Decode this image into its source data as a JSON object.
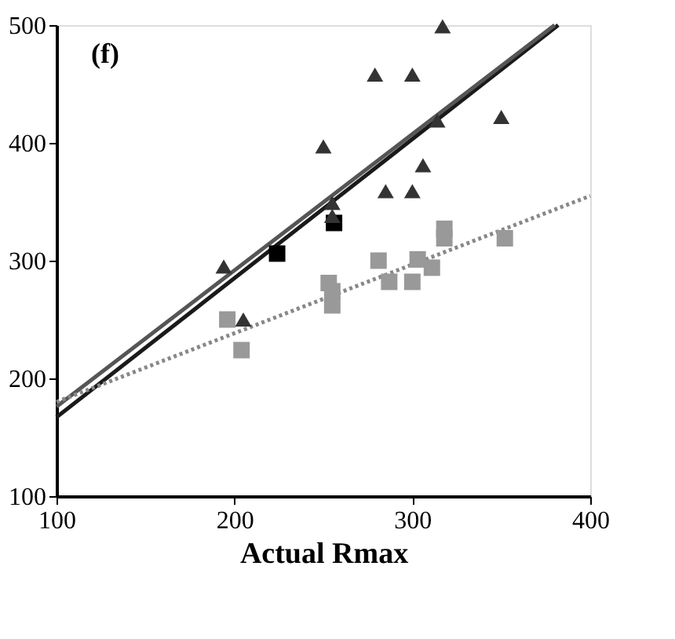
{
  "chart_data": {
    "type": "scatter",
    "xlabel": "Actual Rmax",
    "annotations": [
      "(f)"
    ],
    "xlim": [
      100,
      400
    ],
    "xticks": [
      100,
      200,
      300,
      400
    ],
    "ylim": [
      100,
      500
    ],
    "yticks": [
      100,
      200,
      300,
      400,
      500
    ],
    "grid": false,
    "series": [
      {
        "marker": "triangle",
        "color": "#333333",
        "x": [
          317,
          279,
          300,
          250,
          314,
          350,
          255,
          255,
          306,
          285,
          300,
          194,
          205
        ],
        "values": [
          499,
          458,
          458,
          397,
          419,
          422,
          349,
          338,
          381,
          359,
          359,
          295,
          250
        ]
      },
      {
        "marker": "square",
        "color": "#999999",
        "x": [
          318,
          318,
          352,
          281,
          303,
          311,
          253,
          287,
          300,
          196,
          204,
          255,
          255
        ],
        "values": [
          327,
          319,
          319,
          300,
          301,
          294,
          281,
          282,
          282,
          250,
          224,
          274,
          262
        ]
      },
      {
        "marker": "square",
        "color": "#000000",
        "x": [
          256,
          224
        ],
        "values": [
          332,
          306
        ]
      },
      {
        "type": "line",
        "line_style": "solid",
        "color": "#1a1a1a",
        "x": [
          100,
          382
        ],
        "values": [
          167,
          500
        ]
      },
      {
        "type": "line",
        "line_style": "solid",
        "color": "#555555",
        "x": [
          100,
          380
        ],
        "values": [
          176,
          500
        ]
      },
      {
        "type": "line",
        "line_style": "dotted",
        "color": "#888888",
        "x": [
          100,
          400
        ],
        "values": [
          180,
          355
        ]
      }
    ]
  }
}
